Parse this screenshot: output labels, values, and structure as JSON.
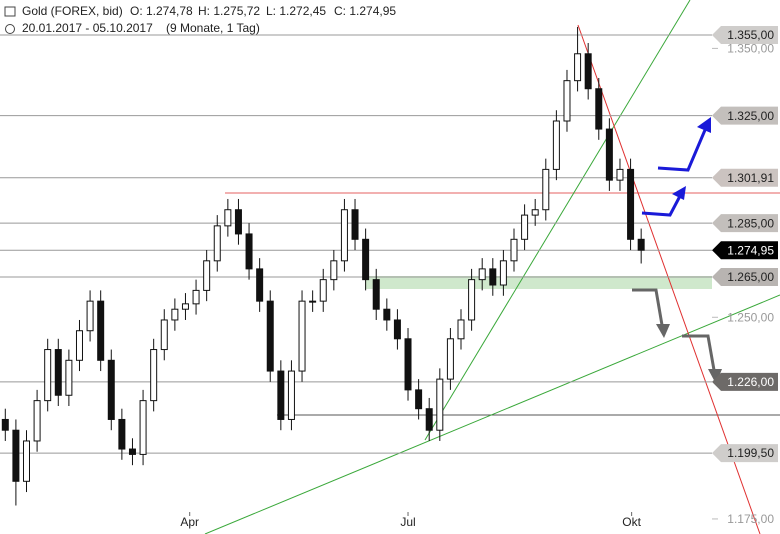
{
  "chart_data": {
    "type": "candlestick",
    "title": "Gold (FOREX, bid)",
    "ohlc_labels": [
      "O: 1.274,78",
      "H: 1.275,72",
      "L: 1.272,45",
      "C: 1.274,95"
    ],
    "period": "20.01.2017 - 05.10.2017",
    "period_note": "(9 Monate, 1 Tag)",
    "open": [
      1212,
      1208,
      1189,
      1204,
      1219,
      1238,
      1221,
      1234,
      1245,
      1256,
      1234,
      1212,
      1201,
      1199,
      1219,
      1238,
      1249,
      1253,
      1255,
      1260,
      1271,
      1284,
      1290,
      1281,
      1268,
      1256,
      1230,
      1212,
      1230,
      1256,
      1256,
      1264,
      1271,
      1290,
      1279,
      1264,
      1253,
      1249,
      1242,
      1223,
      1216,
      1208,
      1227,
      1242,
      1249,
      1264,
      1268,
      1262,
      1271,
      1279,
      1288,
      1290,
      1305,
      1323,
      1338,
      1348,
      1335,
      1320,
      1301,
      1305,
      1279
    ],
    "high": [
      1216,
      1212,
      1208,
      1223,
      1242,
      1242,
      1238,
      1249,
      1260,
      1260,
      1238,
      1216,
      1205,
      1223,
      1242,
      1253,
      1257,
      1259,
      1264,
      1275,
      1288,
      1294,
      1294,
      1285,
      1272,
      1260,
      1234,
      1234,
      1260,
      1260,
      1268,
      1275,
      1294,
      1294,
      1283,
      1268,
      1257,
      1253,
      1246,
      1227,
      1220,
      1231,
      1246,
      1253,
      1268,
      1272,
      1272,
      1275,
      1283,
      1292,
      1294,
      1309,
      1327,
      1342,
      1358,
      1352,
      1339,
      1324,
      1309,
      1309,
      1283
    ],
    "low": [
      1204,
      1180,
      1185,
      1200,
      1215,
      1217,
      1217,
      1230,
      1241,
      1230,
      1208,
      1197,
      1195,
      1195,
      1215,
      1234,
      1245,
      1249,
      1251,
      1256,
      1267,
      1280,
      1277,
      1264,
      1252,
      1226,
      1208,
      1208,
      1226,
      1252,
      1252,
      1260,
      1267,
      1275,
      1260,
      1249,
      1245,
      1238,
      1219,
      1212,
      1204,
      1204,
      1223,
      1238,
      1245,
      1260,
      1258,
      1258,
      1267,
      1275,
      1284,
      1286,
      1301,
      1319,
      1334,
      1331,
      1316,
      1297,
      1297,
      1275,
      1270
    ],
    "close": [
      1208,
      1189,
      1204,
      1219,
      1238,
      1221,
      1234,
      1245,
      1256,
      1234,
      1212,
      1201,
      1199,
      1219,
      1238,
      1249,
      1253,
      1255,
      1260,
      1271,
      1284,
      1290,
      1281,
      1268,
      1256,
      1230,
      1212,
      1230,
      1256,
      1256,
      1264,
      1271,
      1290,
      1279,
      1264,
      1253,
      1249,
      1242,
      1223,
      1216,
      1208,
      1227,
      1242,
      1249,
      1264,
      1268,
      1262,
      1271,
      1279,
      1288,
      1290,
      1305,
      1323,
      1338,
      1348,
      1335,
      1320,
      1301,
      1305,
      1279,
      1274.95
    ],
    "up_color": "#ffffff",
    "down_color": "#111111",
    "xlim": [
      -0.5,
      73.1
    ],
    "xticks": [
      {
        "value": 17.4,
        "label": "Apr"
      },
      {
        "value": 38,
        "label": "Jul"
      },
      {
        "value": 59.1,
        "label": "Okt"
      }
    ],
    "ylim": [
      1169.4,
      1368.0
    ],
    "yticks": [
      {
        "value": 1350,
        "label": "1.350,00"
      },
      {
        "value": 1250,
        "label": "1.250,00"
      },
      {
        "value": 1175,
        "label": "1.175,00"
      }
    ],
    "levels": [
      {
        "value": 1355,
        "label": "1.355,00",
        "color": "#cfcdcb",
        "text_color": "#222222"
      },
      {
        "value": 1325,
        "label": "1.325,00",
        "color": "#c3bfbc",
        "text_color": "#222222"
      },
      {
        "value": 1301.91,
        "label": "1.301,91",
        "color": "#cbc3c0",
        "text_color": "#222222"
      },
      {
        "value": 1285,
        "label": "1.285,00",
        "color": "#c3bfbc",
        "text_color": "#222222"
      },
      {
        "value": 1274.95,
        "label": "1.274,95",
        "color": "#000000",
        "text_color": "#ffffff"
      },
      {
        "value": 1265,
        "label": "1.265,00",
        "color": "#b8b4b1",
        "text_color": "#222222"
      },
      {
        "value": 1226,
        "label": "1.226,00",
        "color": "#6d6a68",
        "text_color": "#ffffff"
      },
      {
        "value": 1199.5,
        "label": "1.199,50",
        "color": "#cfcdcb",
        "text_color": "#222222"
      }
    ]
  }
}
